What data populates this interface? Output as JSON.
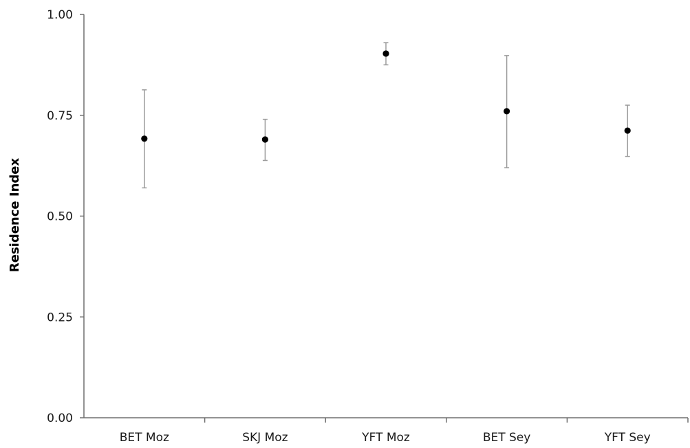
{
  "chart_data": {
    "type": "scatter",
    "title": "",
    "xlabel": "",
    "ylabel": "Residence Index",
    "ylim": [
      0,
      1
    ],
    "y_ticks": [
      "0.00",
      "0.25",
      "0.50",
      "0.75",
      "1.00"
    ],
    "categories": [
      "BET Moz",
      "SKJ Moz",
      "YFT Moz",
      "BET Sey",
      "YFT Sey"
    ],
    "series": [
      {
        "values": [
          0.692,
          0.69,
          0.903,
          0.76,
          0.712
        ],
        "error_low": [
          0.57,
          0.638,
          0.875,
          0.62,
          0.648
        ],
        "error_high": [
          0.813,
          0.74,
          0.93,
          0.898,
          0.775
        ]
      }
    ],
    "grid": false,
    "colors": {
      "marker": "#000000",
      "error_bar": "#9a9a9a",
      "axis": "#6e6e6e"
    }
  }
}
